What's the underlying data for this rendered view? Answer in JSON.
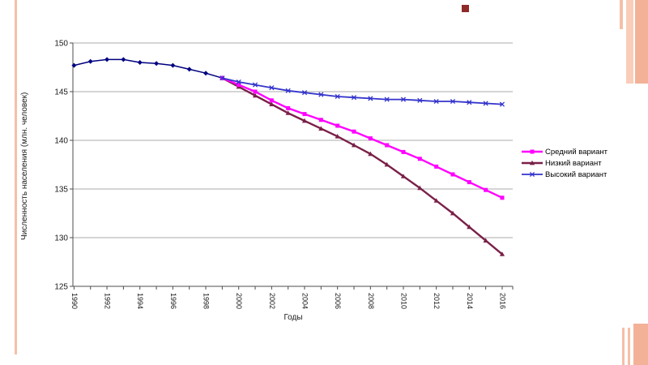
{
  "slide": {
    "background": "#FFFFFF",
    "accents": {
      "stripe_light": "#F9CDB9",
      "stripe_mid": "#F6BFA8",
      "stripe_dark": "#F3B197",
      "corner_square": "#8E2A28"
    }
  },
  "chart_data": {
    "type": "line",
    "title": "",
    "xlabel": "Годы",
    "ylabel": "Численность населения (млн. человек)",
    "xlim": [
      1990,
      2016.6
    ],
    "ylim": [
      125,
      150
    ],
    "yticks": [
      125,
      130,
      135,
      140,
      145,
      150
    ],
    "xticks": [
      1990,
      1992,
      1994,
      1996,
      1998,
      2000,
      2002,
      2004,
      2006,
      2008,
      2010,
      2012,
      2014,
      2016
    ],
    "grid": "horizontal",
    "legend_position": "right",
    "axis_color": "#4D4D4D",
    "gridline_color": "#ABABAB",
    "series": [
      {
        "id": "fact",
        "legend_label": null,
        "color": "#000080",
        "marker": "diamond",
        "width": 1.5,
        "x": [
          1990,
          1991,
          1992,
          1993,
          1994,
          1995,
          1996,
          1997,
          1998,
          1999
        ],
        "values": [
          147.7,
          148.1,
          148.3,
          148.3,
          148.0,
          147.9,
          147.7,
          147.3,
          146.9,
          146.4
        ]
      },
      {
        "id": "medium",
        "legend_label": "Средний вариант",
        "color": "#FF00FF",
        "marker": "square",
        "width": 2.4,
        "x": [
          1999,
          2000,
          2001,
          2002,
          2003,
          2004,
          2005,
          2006,
          2007,
          2008,
          2009,
          2010,
          2011,
          2012,
          2013,
          2014,
          2015,
          2016
        ],
        "values": [
          146.4,
          145.7,
          145.0,
          144.1,
          143.3,
          142.7,
          142.1,
          141.5,
          140.9,
          140.2,
          139.5,
          138.8,
          138.1,
          137.3,
          136.5,
          135.7,
          134.9,
          134.1
        ]
      },
      {
        "id": "low",
        "legend_label": "Низкий вариант",
        "color": "#7A2048",
        "marker": "triangle",
        "width": 2.4,
        "x": [
          1999,
          2000,
          2001,
          2002,
          2003,
          2004,
          2005,
          2006,
          2007,
          2008,
          2009,
          2010,
          2011,
          2012,
          2013,
          2014,
          2015,
          2016
        ],
        "values": [
          146.4,
          145.5,
          144.6,
          143.7,
          142.8,
          142.0,
          141.2,
          140.4,
          139.5,
          138.6,
          137.5,
          136.3,
          135.1,
          133.8,
          132.5,
          131.1,
          129.7,
          128.3
        ]
      },
      {
        "id": "high",
        "legend_label": "Высокий вариант",
        "color": "#3333CC",
        "marker": "x",
        "width": 1.8,
        "x": [
          1999,
          2000,
          2001,
          2002,
          2003,
          2004,
          2005,
          2006,
          2007,
          2008,
          2009,
          2010,
          2011,
          2012,
          2013,
          2014,
          2015,
          2016
        ],
        "values": [
          146.4,
          146.0,
          145.7,
          145.4,
          145.1,
          144.9,
          144.7,
          144.5,
          144.4,
          144.3,
          144.2,
          144.2,
          144.1,
          144.0,
          144.0,
          143.9,
          143.8,
          143.7
        ]
      }
    ]
  }
}
